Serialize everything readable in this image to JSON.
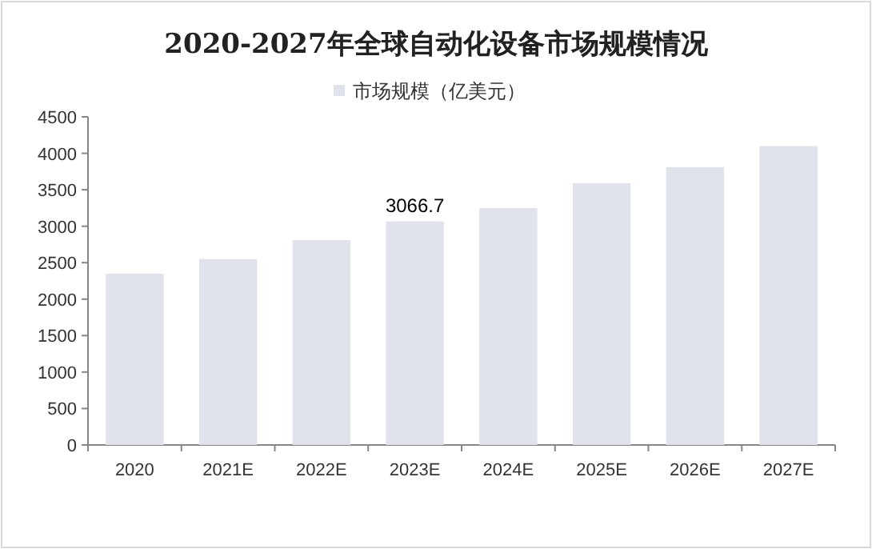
{
  "chart_data": {
    "type": "bar",
    "title": "2020-2027年全球自动化设备市场规模情况",
    "categories": [
      "2020",
      "2021E",
      "2022E",
      "2023E",
      "2024E",
      "2025E",
      "2026E",
      "2027E"
    ],
    "series": [
      {
        "name": "市场规模（亿美元）",
        "color": "#e0e3eb",
        "values": [
          2350,
          2550,
          2810,
          3066.7,
          3250,
          3590,
          3810,
          4100
        ],
        "value_labels": [
          null,
          null,
          null,
          "3066.7",
          null,
          null,
          null,
          null
        ]
      }
    ],
    "ylim": [
      0,
      4500
    ],
    "yticks": [
      0,
      500,
      1000,
      1500,
      2000,
      2500,
      3000,
      3500,
      4000,
      4500
    ],
    "legend": "top",
    "grid": false
  }
}
